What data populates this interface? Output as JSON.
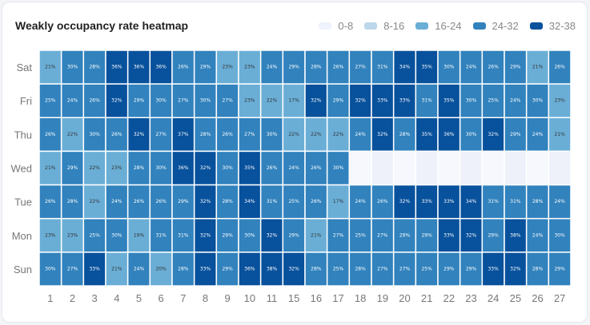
{
  "chart_data": {
    "type": "heatmap",
    "title": "Weakly occupancy rate heatmap",
    "x_categories": [
      "1",
      "2",
      "3",
      "4",
      "5",
      "6",
      "7",
      "8",
      "9",
      "10",
      "11",
      "15",
      "16",
      "17",
      "18",
      "19",
      "20",
      "21",
      "22",
      "23",
      "24",
      "25",
      "26",
      "27"
    ],
    "y_categories": [
      "Sat",
      "Fri",
      "Thu",
      "Wed",
      "Tue",
      "Mon",
      "Sun"
    ],
    "value_suffix": "%",
    "values": [
      [
        21,
        30,
        28,
        36,
        36,
        36,
        26,
        29,
        23,
        23,
        24,
        29,
        28,
        26,
        27,
        31,
        34,
        35,
        30,
        24,
        26,
        29,
        21,
        26
      ],
      [
        25,
        24,
        26,
        32,
        29,
        30,
        27,
        30,
        27,
        23,
        22,
        17,
        32,
        29,
        32,
        33,
        33,
        31,
        35,
        30,
        25,
        24,
        30,
        23
      ],
      [
        26,
        22,
        30,
        26,
        32,
        27,
        37,
        28,
        26,
        27,
        30,
        22,
        22,
        22,
        24,
        32,
        28,
        35,
        36,
        30,
        32,
        29,
        24,
        21
      ],
      [
        21,
        29,
        22,
        23,
        28,
        30,
        36,
        32,
        30,
        35,
        26,
        24,
        26,
        30,
        null,
        null,
        null,
        null,
        null,
        null,
        null,
        null,
        null,
        null
      ],
      [
        26,
        28,
        22,
        24,
        26,
        26,
        29,
        32,
        28,
        34,
        31,
        25,
        26,
        17,
        24,
        26,
        32,
        33,
        33,
        34,
        31,
        31,
        28,
        24
      ],
      [
        23,
        23,
        25,
        30,
        19,
        31,
        31,
        32,
        29,
        30,
        32,
        29,
        21,
        27,
        25,
        27,
        29,
        29,
        33,
        32,
        29,
        38,
        24,
        30
      ],
      [
        30,
        27,
        33,
        21,
        24,
        20,
        28,
        33,
        29,
        36,
        38,
        32,
        28,
        25,
        28,
        27,
        27,
        25,
        29,
        29,
        33,
        32,
        28,
        29
      ]
    ],
    "legend": [
      {
        "label": "0-8",
        "min": 0,
        "max": 8,
        "color": "#eef3fd"
      },
      {
        "label": "8-16",
        "min": 8,
        "max": 16,
        "color": "#bcd6ea"
      },
      {
        "label": "16-24",
        "min": 16,
        "max": 24,
        "color": "#6aaed6"
      },
      {
        "label": "24-32",
        "min": 24,
        "max": 32,
        "color": "#3182bd"
      },
      {
        "label": "32-38",
        "min": 32,
        "max": 38,
        "color": "#08519c"
      }
    ],
    "legend_position": "top-right"
  }
}
